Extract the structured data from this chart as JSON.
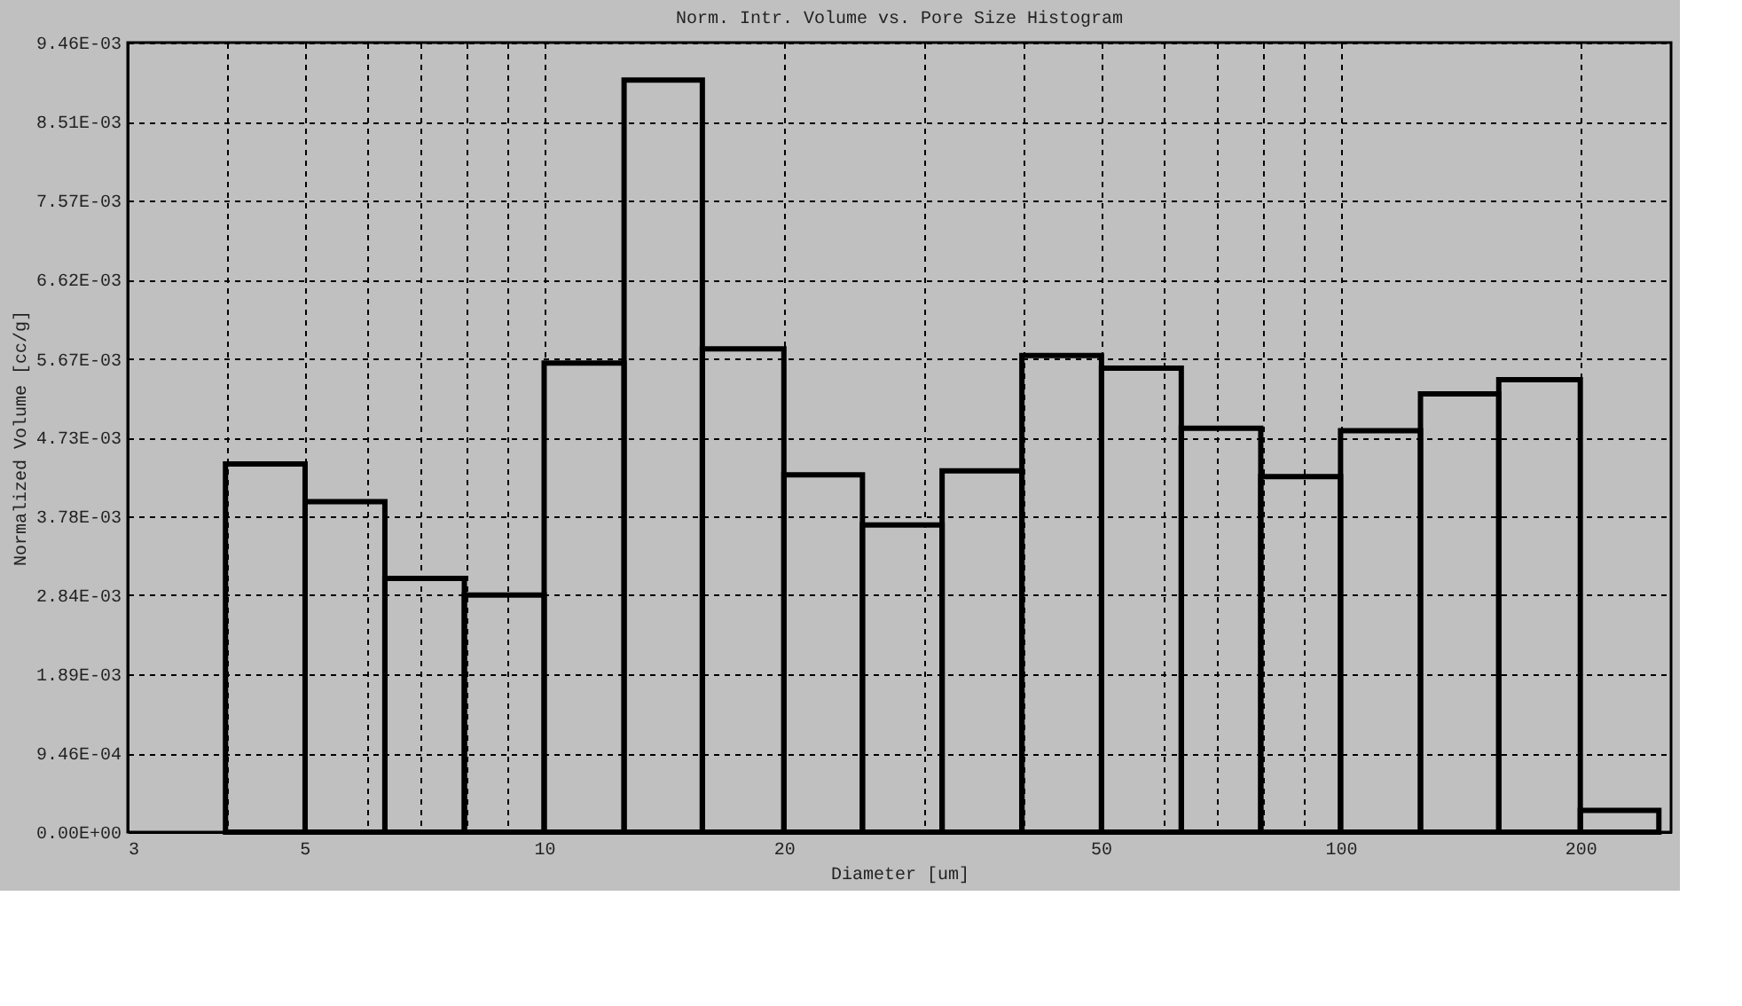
{
  "chart_data": {
    "type": "histogram",
    "title": "Norm. Intr. Volume vs. Pore Size Histogram",
    "xlabel": "Diameter [um]",
    "ylabel": "Normalized Volume [cc/g]",
    "bins": [
      3.98,
      5.01,
      6.31,
      7.94,
      10,
      12.6,
      15.8,
      20,
      25.1,
      31.6,
      39.8,
      50.1,
      63.1,
      79.4,
      100,
      126,
      158,
      200,
      251
    ],
    "values": [
      0.00441,
      0.00396,
      0.00304,
      0.00284,
      0.00562,
      0.00901,
      0.00579,
      0.00428,
      0.00368,
      0.00433,
      0.00571,
      0.00556,
      0.00484,
      0.00426,
      0.00481,
      0.00525,
      0.00542,
      0.00026
    ],
    "color": "#000000",
    "log": "x",
    "grid": true,
    "xlim": [
      3,
      260
    ],
    "xticks": [
      3,
      {
        "value": 4,
        "label": null
      },
      5,
      {
        "value": 6,
        "label": null
      },
      {
        "value": 7,
        "label": null
      },
      {
        "value": 8,
        "label": null
      },
      {
        "value": 9,
        "label": null
      },
      10,
      20,
      {
        "value": 30,
        "label": null
      },
      {
        "value": 40,
        "label": null
      },
      50,
      {
        "value": 60,
        "label": null
      },
      {
        "value": 70,
        "label": null
      },
      {
        "value": 80,
        "label": null
      },
      {
        "value": 90,
        "label": null
      },
      100,
      200
    ],
    "ylim": [
      0,
      0.00946
    ],
    "yticks": [
      {
        "value": 0,
        "label": "0.00E+00"
      },
      {
        "value": 0.000946,
        "label": "9.46E-04"
      },
      {
        "value": 0.00189,
        "label": "1.89E-03"
      },
      {
        "value": 0.00284,
        "label": "2.84E-03"
      },
      {
        "value": 0.00378,
        "label": "3.78E-03"
      },
      {
        "value": 0.00473,
        "label": "4.73E-03"
      },
      {
        "value": 0.00567,
        "label": "5.67E-03"
      },
      {
        "value": 0.00662,
        "label": "6.62E-03"
      },
      {
        "value": 0.00757,
        "label": "7.57E-03"
      },
      {
        "value": 0.00851,
        "label": "8.51E-03"
      },
      {
        "value": 0.00946,
        "label": "9.46E-03"
      }
    ]
  }
}
